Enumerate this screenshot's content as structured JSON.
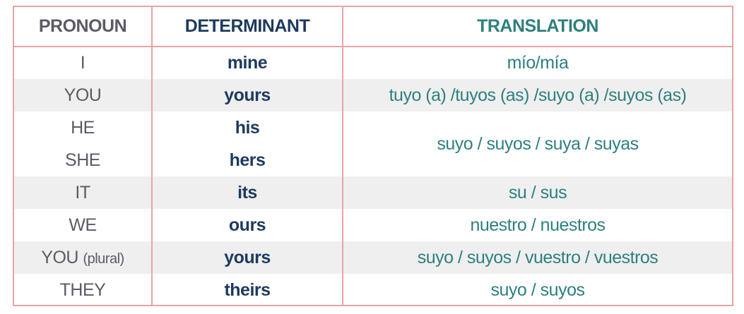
{
  "headers": {
    "pronoun": "PRONOUN",
    "determinant": "DETERMINANT",
    "translation": "TRANSLATION"
  },
  "rows": [
    {
      "pronoun": "I",
      "determinant": "mine",
      "translation": "mío/mía"
    },
    {
      "pronoun": "YOU",
      "determinant": "yours",
      "translation": "tuyo (a) /tuyos (as) /suyo (a) /suyos (as)"
    },
    {
      "pronoun": "HE",
      "determinant": "his",
      "translation": "suyo / suyos / suya / suyas"
    },
    {
      "pronoun": "SHE",
      "determinant": "hers"
    },
    {
      "pronoun": "IT",
      "determinant": "its",
      "translation": "su / sus"
    },
    {
      "pronoun": "WE",
      "determinant": "ours",
      "translation": "nuestro / nuestros"
    },
    {
      "pronoun": "YOU",
      "pronoun_note": "(plural)",
      "determinant": "yours",
      "translation": "suyo / suyos / vuestro / vuestros"
    },
    {
      "pronoun": "THEY",
      "determinant": "theirs",
      "translation": "suyo / suyos"
    }
  ],
  "colors": {
    "border": "#e9a4a4",
    "pronoun_text": "#5b5b66",
    "determinant_text": "#1d3a5f",
    "translation_text": "#2e7f7f",
    "row_shade": "#efefef"
  }
}
